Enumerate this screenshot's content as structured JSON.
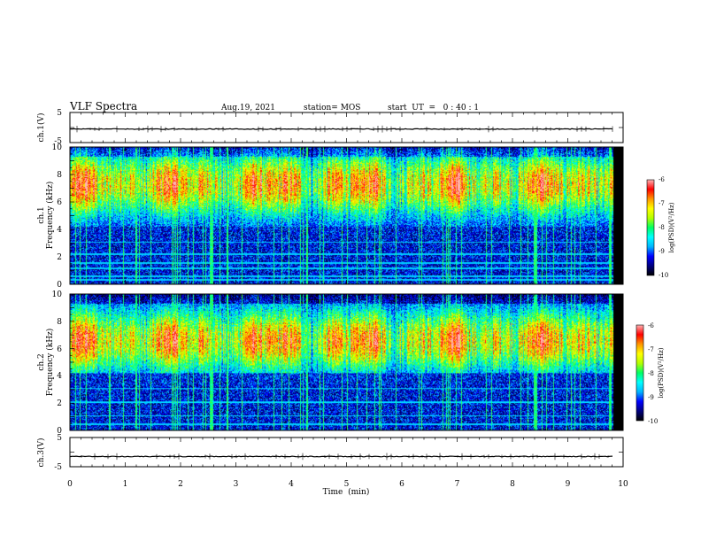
{
  "header": {
    "title": "VLF Spectra",
    "date": "Aug.19, 2021",
    "station": "station= MOS",
    "start": "start  UT  =   0 : 40 : 1"
  },
  "chart_data": [
    {
      "type": "line",
      "panel": "ch1-waveform",
      "ylabel": "ch.1(V)",
      "ylim": [
        -5,
        5
      ],
      "yticks": [
        "5",
        "-5"
      ],
      "xlim": [
        0,
        10
      ],
      "series_level_V": -0.5
    },
    {
      "type": "heatmap",
      "panel": "ch1-spectrogram",
      "ylabel": "ch.1\nFrequency (kHz)",
      "ylabel_lines": [
        "ch.1",
        "Frequency (kHz)"
      ],
      "ylim": [
        0,
        10
      ],
      "yticks": [
        "0",
        "2",
        "4",
        "6",
        "8",
        "10"
      ],
      "xlim": [
        0,
        10
      ],
      "data_end_min": 9.82,
      "colorbar": {
        "label": "log(PSD)(V²/Hz)",
        "range": [
          -10,
          -6
        ],
        "ticks": [
          "-6",
          "-7",
          "-8",
          "-9",
          "-10"
        ]
      },
      "emission_band_kHz": [
        5.0,
        9.0
      ],
      "emission_peak_kHz": 7.3,
      "line_frequencies_kHz": [
        0.35,
        0.6,
        1.2,
        1.6,
        2.2,
        3.1
      ]
    },
    {
      "type": "heatmap",
      "panel": "ch2-spectrogram",
      "ylabel": "ch.2\nFrequency (kHz)",
      "ylabel_lines": [
        "ch.2",
        "Frequency (kHz)"
      ],
      "ylim": [
        0,
        10
      ],
      "yticks": [
        "0",
        "2",
        "4",
        "6",
        "8",
        "10"
      ],
      "xlim": [
        0,
        10
      ],
      "data_end_min": 9.82,
      "colorbar": {
        "label": "log(PSD)(V²/Hz)",
        "range": [
          -10,
          -6
        ],
        "ticks": [
          "-6",
          "-7",
          "-8",
          "-9",
          "-10"
        ]
      },
      "emission_band_kHz": [
        4.5,
        8.5
      ],
      "emission_peak_kHz": 6.6,
      "line_frequencies_kHz": [
        0.5,
        1.1,
        2.1,
        3.1
      ]
    },
    {
      "type": "line",
      "panel": "ch3-waveform",
      "ylabel": "ch.3(V)",
      "ylim": [
        -5,
        5
      ],
      "yticks": [
        "5",
        "-5"
      ],
      "xlim": [
        0,
        10
      ],
      "series_level_V": -1.5
    }
  ],
  "xaxis": {
    "label": "Time  (min)",
    "ticks": [
      "0",
      "1",
      "2",
      "3",
      "4",
      "5",
      "6",
      "7",
      "8",
      "9",
      "10"
    ]
  },
  "colors": {
    "background": "#ffffff",
    "colormap": [
      "#000000",
      "#00007f",
      "#0000ff",
      "#00b4ff",
      "#00ffff",
      "#00ff64",
      "#b4ff00",
      "#ffff00",
      "#ff9600",
      "#ff0000",
      "#ffb4b4"
    ]
  }
}
